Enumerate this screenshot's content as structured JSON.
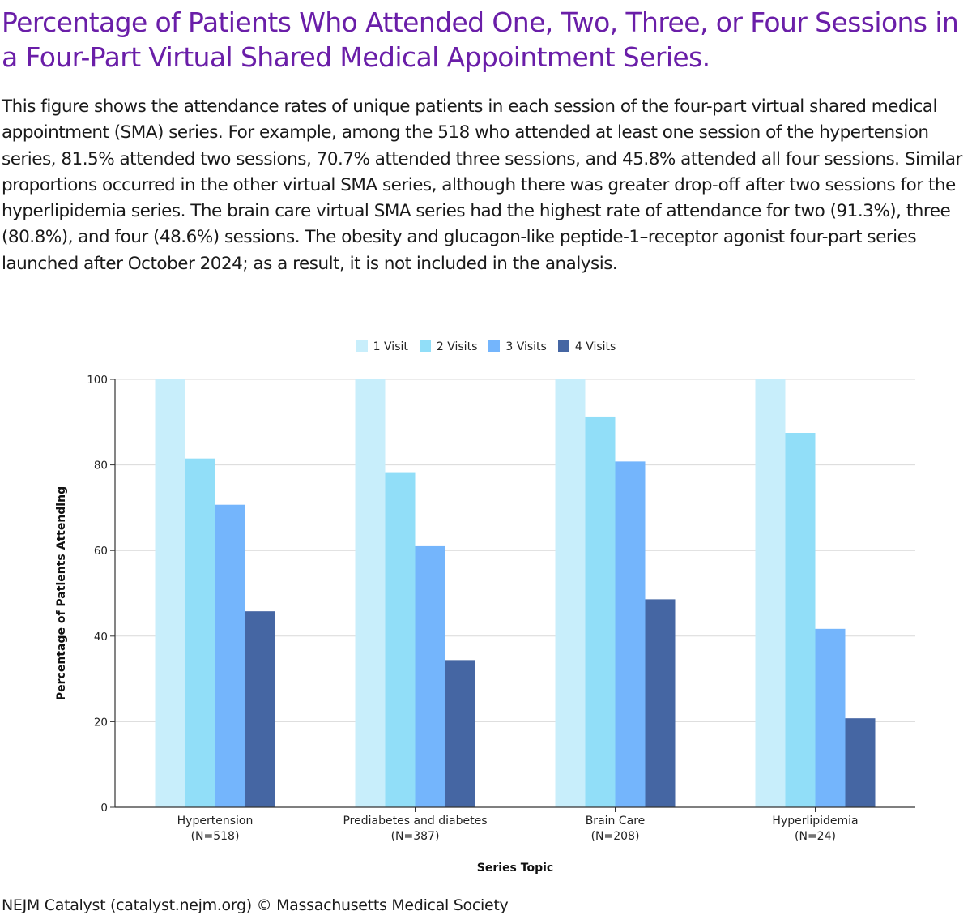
{
  "title": "Percentage of Patients Who Attended One, Two, Three, or Four Sessions in a Four-Part Virtual Shared Medical Appointment Series.",
  "caption": "This figure shows the attendance rates of unique patients in each session of the four-part virtual shared medical appointment (SMA) series. For example, among the 518 who attended at least one session of the hypertension series, 81.5% attended two sessions, 70.7% attended three sessions, and 45.8% attended all four sessions. Similar proportions occurred in the other virtual SMA series, although there was greater drop-off after two sessions for the hyperlipidemia series. The brain care virtual SMA series had the highest rate of attendance for two (91.3%), three (80.8%), and four (48.6%) sessions. The obesity and glucagon-like peptide-1–receptor agonist four-part series launched after October 2024; as a result, it is not included in the analysis.",
  "footer": "NEJM Catalyst (catalyst.nejm.org) © Massachusetts Medical Society",
  "chart_data": {
    "type": "bar",
    "categories": [
      {
        "name": "Hypertension",
        "n": "(N=518)"
      },
      {
        "name": "Prediabetes and diabetes",
        "n": "(N=387)"
      },
      {
        "name": "Brain Care",
        "n": "(N=208)"
      },
      {
        "name": "Hyperlipidemia",
        "n": "(N=24)"
      }
    ],
    "series": [
      {
        "name": "1 Visit",
        "color": "#c8eefb",
        "values": [
          100,
          100,
          100,
          100
        ]
      },
      {
        "name": "2 Visits",
        "color": "#91def8",
        "values": [
          81.5,
          78.3,
          91.3,
          87.5
        ]
      },
      {
        "name": "3 Visits",
        "color": "#74b5fc",
        "values": [
          70.7,
          61.0,
          80.8,
          41.7
        ]
      },
      {
        "name": "4 Visits",
        "color": "#4566a3",
        "values": [
          45.8,
          34.4,
          48.6,
          20.8
        ]
      }
    ],
    "xlabel": "Series Topic",
    "ylabel": "Percentage of Patients Attending",
    "ylim": [
      0,
      100
    ],
    "yticks": [
      0,
      20,
      40,
      60,
      80,
      100
    ],
    "grid": true,
    "legend_position": "top-center"
  }
}
